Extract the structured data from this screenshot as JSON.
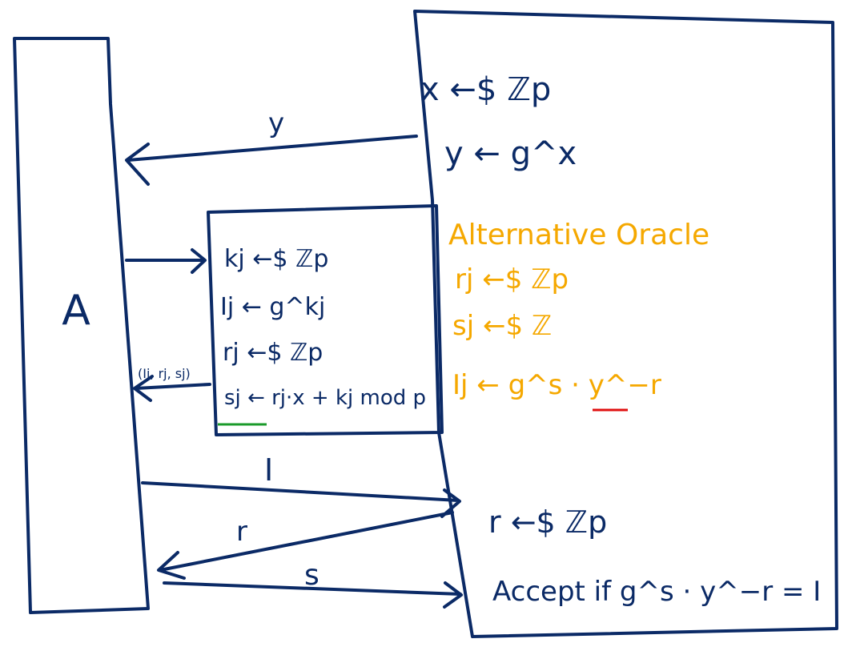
{
  "adversary": {
    "label": "A"
  },
  "challenger": {
    "line1": "x ←$ ℤp",
    "line2": "y ← g^x"
  },
  "oracle": {
    "line1": "kj ←$ ℤp",
    "line2": "Ij ← g^kj",
    "line3": "rj ←$ ℤp",
    "line4": "sj ← rj·x + kj mod p"
  },
  "alternative_oracle": {
    "title": "Alternative Oracle",
    "line1": "rj ←$ ℤp",
    "line2": "sj ←$ ℤ",
    "line3": "Ij ← g^s · y^−r"
  },
  "verifier": {
    "line1": "r ←$ ℤp",
    "line2": "Accept if g^s · y^−r = I"
  },
  "messages": {
    "y": "y",
    "oracle_reply": "(Ij, rj, sj)",
    "commit": "I",
    "challenge": "r",
    "response": "s"
  },
  "colors": {
    "ink": "#0b2a66",
    "alternative": "#f5a800",
    "highlight_red": "#e01010",
    "highlight_green": "#1a9a2a"
  }
}
